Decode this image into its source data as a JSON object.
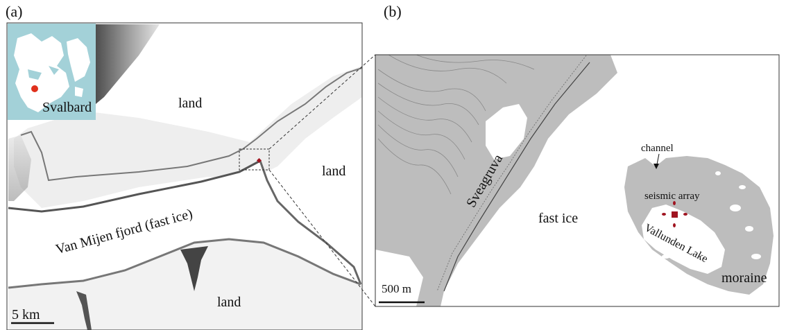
{
  "panel_a": {
    "label": "(a)",
    "inset_label": "Svalbard",
    "land_labels": [
      "land",
      "land",
      "land"
    ],
    "fjord_label": "Van Mijen fjord (fast ice)",
    "scale_bar": "5 km"
  },
  "panel_b": {
    "label": "(b)",
    "place_label": "Sveagruva",
    "ice_label": "fast ice",
    "channel_label": "channel",
    "array_label": "seismic array",
    "lake_label": "Vallunden Lake",
    "moraine_label": "moraine",
    "scale_bar": "500 m"
  },
  "colors": {
    "inset_sea": "#a3d1d8",
    "land_grey": "#bdbdbd",
    "array_red": "#a01420",
    "marker_red": "#e0301c"
  }
}
